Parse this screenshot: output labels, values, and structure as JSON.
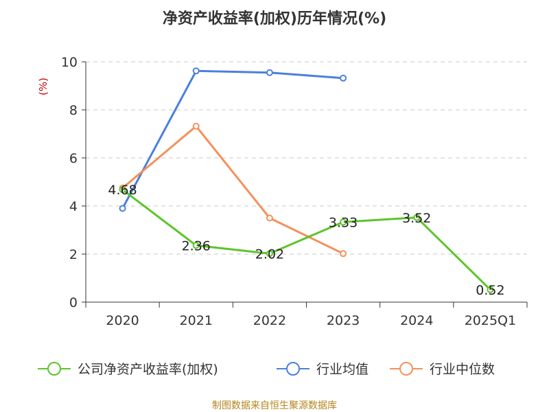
{
  "chart_data": {
    "type": "line",
    "title": "净资产收益率(加权)历年情况(%)",
    "ylabel": "(%)",
    "categories": [
      "2020",
      "2021",
      "2022",
      "2023",
      "2024",
      "2025Q1"
    ],
    "ylim": [
      0,
      10
    ],
    "yticks": [
      "0",
      "2",
      "4",
      "6",
      "8",
      "10"
    ],
    "grid": true,
    "legend_position": "bottom",
    "series": [
      {
        "name": "公司净资产收益率(加权)",
        "color": "#5cc42a",
        "values": [
          4.68,
          2.36,
          2.02,
          3.33,
          3.52,
          0.52
        ],
        "labels": [
          "4.68",
          "2.36",
          "2.02",
          "3.33",
          "3.52",
          "0.52"
        ]
      },
      {
        "name": "行业均值",
        "color": "#4a7fdd",
        "values": [
          3.9,
          9.62,
          9.55,
          9.32,
          null,
          null
        ]
      },
      {
        "name": "行业中位数",
        "color": "#f5905a",
        "values": [
          4.75,
          7.32,
          3.5,
          2.02,
          null,
          null
        ]
      }
    ]
  },
  "footer": {
    "source": "制图数据来自恒生聚源数据库"
  }
}
